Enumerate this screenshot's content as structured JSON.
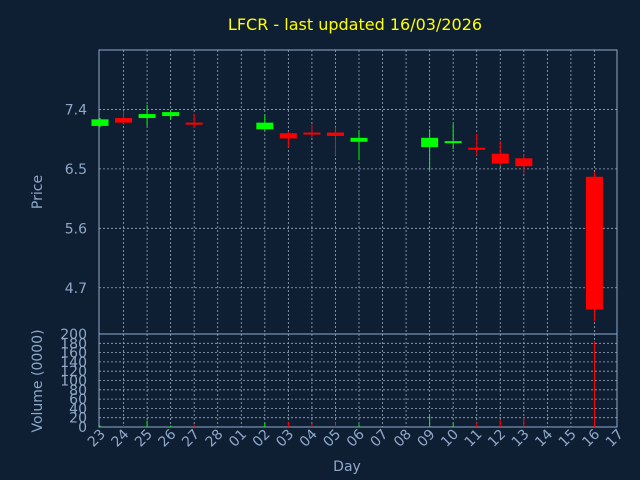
{
  "chart_data": {
    "type": "candlestick",
    "title": "LFCR - last updated 16/03/2026",
    "xlabel": "Day",
    "ylabel_price": "Price",
    "ylabel_volume": "Volume (0000)",
    "x_ticks": [
      "23",
      "24",
      "25",
      "26",
      "27",
      "28",
      "01",
      "02",
      "03",
      "04",
      "05",
      "06",
      "07",
      "08",
      "09",
      "10",
      "11",
      "12",
      "13",
      "14",
      "15",
      "16",
      "17"
    ],
    "price_ticks": [
      "7.4",
      "6.5",
      "5.6",
      "4.7"
    ],
    "volume_ticks": [
      "200",
      "180",
      "160",
      "140",
      "120",
      "100",
      "80",
      "60",
      "40",
      "20",
      "0"
    ],
    "price_range": [
      4.0,
      8.3
    ],
    "volume_range": [
      0,
      200
    ],
    "grid": true,
    "up_color": "#00ff00",
    "down_color": "#ff0000",
    "candles": [
      {
        "day": "23",
        "open": 7.15,
        "high": 7.27,
        "low": 7.13,
        "close": 7.25
      },
      {
        "day": "24",
        "open": 7.27,
        "high": 7.38,
        "low": 7.17,
        "close": 7.2
      },
      {
        "day": "25",
        "open": 7.27,
        "high": 7.47,
        "low": 7.15,
        "close": 7.33
      },
      {
        "day": "26",
        "open": 7.3,
        "high": 7.38,
        "low": 7.25,
        "close": 7.36
      },
      {
        "day": "27",
        "open": 7.2,
        "high": 7.33,
        "low": 7.12,
        "close": 7.17
      },
      {
        "day": "02",
        "open": 7.1,
        "high": 7.32,
        "low": 7.08,
        "close": 7.2
      },
      {
        "day": "03",
        "open": 7.04,
        "high": 7.07,
        "low": 6.82,
        "close": 6.96
      },
      {
        "day": "04",
        "open": 7.05,
        "high": 7.17,
        "low": 6.97,
        "close": 7.03
      },
      {
        "day": "05",
        "open": 7.05,
        "high": 7.13,
        "low": 6.7,
        "close": 7.0
      },
      {
        "day": "06",
        "open": 6.91,
        "high": 7.08,
        "low": 6.63,
        "close": 6.97
      },
      {
        "day": "09",
        "open": 6.83,
        "high": 7.1,
        "low": 6.48,
        "close": 6.97
      },
      {
        "day": "10",
        "open": 6.89,
        "high": 7.18,
        "low": 6.8,
        "close": 6.92
      },
      {
        "day": "11",
        "open": 6.82,
        "high": 7.03,
        "low": 6.7,
        "close": 6.8
      },
      {
        "day": "12",
        "open": 6.73,
        "high": 6.92,
        "low": 6.55,
        "close": 6.58
      },
      {
        "day": "13",
        "open": 6.66,
        "high": 6.72,
        "low": 6.43,
        "close": 6.54
      },
      {
        "day": "16",
        "open": 6.38,
        "high": 6.45,
        "low": 4.2,
        "close": 4.37
      }
    ],
    "volumes": [
      {
        "day": "23",
        "value": 3,
        "dir": "up"
      },
      {
        "day": "24",
        "value": 4,
        "dir": "down"
      },
      {
        "day": "25",
        "value": 14,
        "dir": "up"
      },
      {
        "day": "26",
        "value": 3,
        "dir": "up"
      },
      {
        "day": "27",
        "value": 5,
        "dir": "down"
      },
      {
        "day": "02",
        "value": 9,
        "dir": "up"
      },
      {
        "day": "03",
        "value": 11,
        "dir": "down"
      },
      {
        "day": "04",
        "value": 7,
        "dir": "down"
      },
      {
        "day": "05",
        "value": 10,
        "dir": "down"
      },
      {
        "day": "06",
        "value": 6,
        "dir": "up"
      },
      {
        "day": "09",
        "value": 24,
        "dir": "up"
      },
      {
        "day": "10",
        "value": 9,
        "dir": "up"
      },
      {
        "day": "11",
        "value": 10,
        "dir": "down"
      },
      {
        "day": "12",
        "value": 17,
        "dir": "down"
      },
      {
        "day": "13",
        "value": 20,
        "dir": "down"
      },
      {
        "day": "16",
        "value": 185,
        "dir": "down"
      }
    ]
  }
}
